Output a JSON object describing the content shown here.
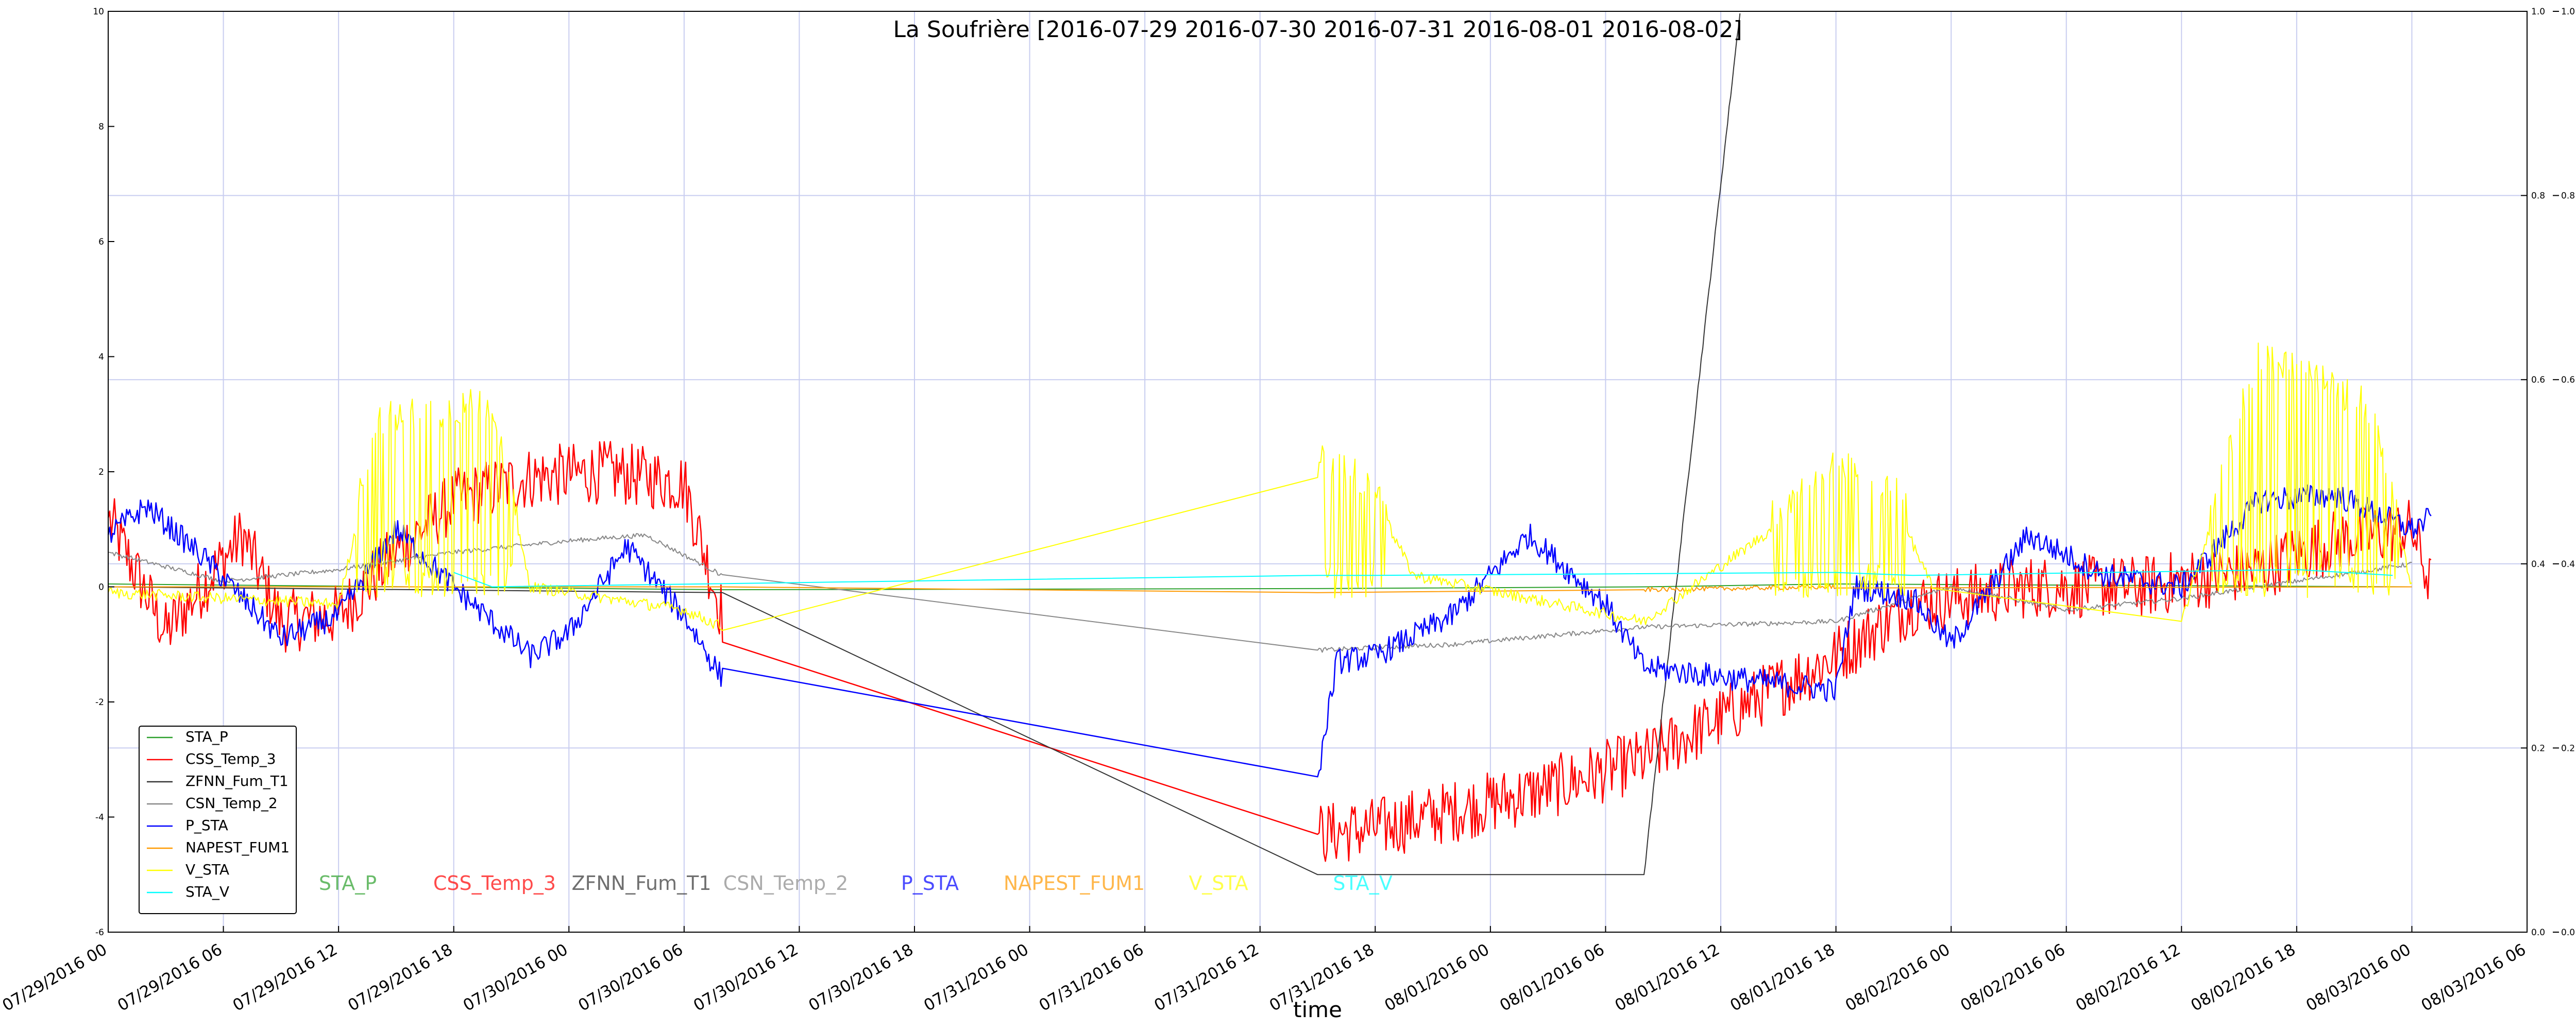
{
  "chart_data": {
    "type": "line",
    "title": "La Soufrière [2016-07-29 2016-07-30 2016-07-31 2016-08-01 2016-08-02]",
    "xlabel": "time",
    "ylabel": "",
    "xlim": [
      "07/29/2016 00",
      "08/03/2016 06"
    ],
    "x_tick_labels": [
      "07/29/2016 00",
      "07/29/2016 06",
      "07/29/2016 12",
      "07/29/2016 18",
      "07/30/2016 00",
      "07/30/2016 06",
      "07/30/2016 12",
      "07/30/2016 18",
      "07/31/2016 00",
      "07/31/2016 06",
      "07/31/2016 12",
      "07/31/2016 18",
      "08/01/2016 00",
      "08/01/2016 06",
      "08/01/2016 12",
      "08/01/2016 18",
      "08/02/2016 00",
      "08/02/2016 06",
      "08/02/2016 12",
      "08/02/2016 18",
      "08/03/2016 00",
      "08/03/2016 06"
    ],
    "ylim_left": [
      -6,
      10
    ],
    "y_ticks_left": [
      "-6",
      "-4",
      "-2",
      "0",
      "2",
      "4",
      "6",
      "8",
      "10"
    ],
    "ylim_right": [
      0.0,
      1.0
    ],
    "y_ticks_right": [
      "0.0",
      "0.2",
      "0.4",
      "0.6",
      "0.8",
      "1.0"
    ],
    "y_ticks_right_outer": [
      "0.0",
      "0.2",
      "0.4",
      "0.6",
      "0.8",
      "1.0"
    ],
    "grid": true,
    "legend_position": "lower-left",
    "series": [
      {
        "name": "STA_P",
        "color": "#2ca02c",
        "axis": "left",
        "points": [
          [
            "07/29/2016 00",
            0.05
          ],
          [
            "07/30/2016 08",
            -0.05
          ],
          [
            "07/31/2016 15",
            -0.03
          ],
          [
            "08/01/2016 08",
            0.0
          ],
          [
            "08/01/2016 18",
            0.05
          ],
          [
            "08/03/2016 00",
            0.0
          ]
        ]
      },
      {
        "name": "CSS_Temp_3",
        "color": "#ff0000",
        "axis": "left",
        "noise": 0.55,
        "points": [
          [
            "07/29/2016 00",
            1.2
          ],
          [
            "07/29/2016 03",
            -0.8
          ],
          [
            "07/29/2016 07",
            0.9
          ],
          [
            "07/29/2016 09",
            -0.6
          ],
          [
            "07/29/2016 12",
            -0.5
          ],
          [
            "07/29/2016 15",
            0.6
          ],
          [
            "07/29/2016 18",
            1.5
          ],
          [
            "07/29/2016 22",
            1.9
          ],
          [
            "07/30/2016 02",
            2.0
          ],
          [
            "07/30/2016 06",
            1.8
          ],
          [
            "07/30/2016 08",
            -0.5
          ],
          [
            "07/31/2016 15",
            -4.3
          ],
          [
            "07/31/2016 18",
            -4.2
          ],
          [
            "07/31/2016 22",
            -3.9
          ],
          [
            "08/01/2016 02",
            -3.6
          ],
          [
            "08/01/2016 06",
            -3.2
          ],
          [
            "08/01/2016 08",
            -3.0
          ],
          [
            "08/01/2016 18",
            -1.2
          ],
          [
            "08/01/2016 22",
            -0.3
          ],
          [
            "08/02/2016 04",
            0.0
          ],
          [
            "08/02/2016 10",
            0.0
          ],
          [
            "08/02/2016 16",
            0.3
          ],
          [
            "08/02/2016 20",
            0.8
          ],
          [
            "08/03/2016 00",
            1.0
          ],
          [
            "08/03/2016 01",
            0.0
          ]
        ]
      },
      {
        "name": "ZFNN_Fum_T1",
        "color": "#333333",
        "axis": "left",
        "noise": 0.05,
        "points": [
          [
            "07/29/2016 00",
            0.0
          ],
          [
            "07/30/2016 08",
            -0.1
          ],
          [
            "07/31/2016 15",
            -5.0
          ],
          [
            "08/01/2016 08",
            -5.0
          ],
          [
            "08/01/2016 13",
            10.0
          ]
        ]
      },
      {
        "name": "CSN_Temp_2",
        "color": "#888888",
        "axis": "left",
        "noise": 0.04,
        "points": [
          [
            "07/29/2016 00",
            0.6
          ],
          [
            "07/29/2016 06",
            0.1
          ],
          [
            "07/29/2016 12",
            0.3
          ],
          [
            "07/29/2016 18",
            0.6
          ],
          [
            "07/30/2016 00",
            0.8
          ],
          [
            "07/30/2016 04",
            0.9
          ],
          [
            "07/30/2016 08",
            0.2
          ],
          [
            "07/31/2016 15",
            -1.1
          ],
          [
            "07/31/2016 22",
            -1.0
          ],
          [
            "08/01/2016 08",
            -0.7
          ],
          [
            "08/01/2016 18",
            -0.6
          ],
          [
            "08/02/2016 00",
            0.0
          ],
          [
            "08/02/2016 06",
            -0.4
          ],
          [
            "08/02/2016 12",
            -0.2
          ],
          [
            "08/02/2016 20",
            0.2
          ],
          [
            "08/03/2016 00",
            0.4
          ]
        ]
      },
      {
        "name": "P_STA",
        "color": "#0000ff",
        "axis": "left",
        "noise": 0.22,
        "points": [
          [
            "07/29/2016 00",
            0.9
          ],
          [
            "07/29/2016 02",
            1.4
          ],
          [
            "07/29/2016 05",
            0.5
          ],
          [
            "07/29/2016 09",
            -0.9
          ],
          [
            "07/29/2016 12",
            -0.5
          ],
          [
            "07/29/2016 15",
            1.0
          ],
          [
            "07/29/2016 18",
            0.0
          ],
          [
            "07/29/2016 22",
            -1.2
          ],
          [
            "07/30/2016 00",
            -0.8
          ],
          [
            "07/30/2016 03",
            0.7
          ],
          [
            "07/30/2016 06",
            -0.5
          ],
          [
            "07/30/2016 08",
            -1.6
          ],
          [
            "07/31/2016 15",
            -3.3
          ],
          [
            "07/31/2016 16",
            -1.3
          ],
          [
            "07/31/2016 18",
            -1.2
          ],
          [
            "07/31/2016 22",
            -0.5
          ],
          [
            "08/01/2016 02",
            0.9
          ],
          [
            "08/01/2016 06",
            -0.3
          ],
          [
            "08/01/2016 08",
            -1.4
          ],
          [
            "08/01/2016 18",
            -1.8
          ],
          [
            "08/01/2016 19",
            0.0
          ],
          [
            "08/01/2016 22",
            -0.2
          ],
          [
            "08/02/2016 00",
            -1.0
          ],
          [
            "08/02/2016 04",
            0.9
          ],
          [
            "08/02/2016 08",
            0.2
          ],
          [
            "08/02/2016 12",
            0.0
          ],
          [
            "08/02/2016 16",
            1.5
          ],
          [
            "08/02/2016 20",
            1.6
          ],
          [
            "08/03/2016 00",
            1.0
          ],
          [
            "08/03/2016 01",
            1.2
          ]
        ]
      },
      {
        "name": "NAPEST_FUM1",
        "color": "#ff9900",
        "axis": "left",
        "noise": 0.04,
        "points": [
          [
            "07/29/2016 00",
            0.0
          ],
          [
            "07/30/2016 08",
            0.0
          ],
          [
            "07/31/2016 15",
            -0.1
          ],
          [
            "08/01/2016 08",
            -0.05
          ],
          [
            "08/01/2016 18",
            0.0
          ],
          [
            "08/03/2016 00",
            0.0
          ]
        ]
      },
      {
        "name": "V_STA",
        "color": "#ffff00",
        "axis": "left",
        "spiky": true,
        "points": [
          [
            "07/29/2016 00",
            -0.1
          ],
          [
            "07/29/2016 12",
            -0.3
          ],
          [
            "07/29/2016 14",
            2.6
          ],
          [
            "07/29/2016 20",
            2.9
          ],
          [
            "07/29/2016 22",
            0.0
          ],
          [
            "07/30/2016 06",
            -0.4
          ],
          [
            "07/30/2016 08",
            -0.7
          ],
          [
            "07/31/2016 15",
            1.9
          ],
          [
            "07/31/2016 18",
            1.5
          ],
          [
            "07/31/2016 20",
            0.2
          ],
          [
            "08/01/2016 08",
            -0.6
          ],
          [
            "08/01/2016 18",
            1.8
          ],
          [
            "08/01/2016 21",
            1.5
          ],
          [
            "08/01/2016 23",
            0.0
          ],
          [
            "08/02/2016 12",
            -0.6
          ],
          [
            "08/02/2016 16",
            3.8
          ],
          [
            "08/02/2016 22",
            2.8
          ],
          [
            "08/03/2016 00",
            0.0
          ]
        ]
      },
      {
        "name": "STA_V",
        "color": "#00ffff",
        "axis": "left",
        "points": [
          [
            "07/29/2016 18",
            0.25
          ],
          [
            "07/29/2016 20",
            0.0
          ],
          [
            "07/31/2016 15",
            0.2
          ],
          [
            "07/31/2016 18",
            0.2
          ],
          [
            "08/01/2016 18",
            0.25
          ],
          [
            "08/01/2016 22",
            0.2
          ],
          [
            "08/02/2016 18",
            0.3
          ],
          [
            "08/02/2016 23",
            0.2
          ]
        ]
      }
    ]
  }
}
